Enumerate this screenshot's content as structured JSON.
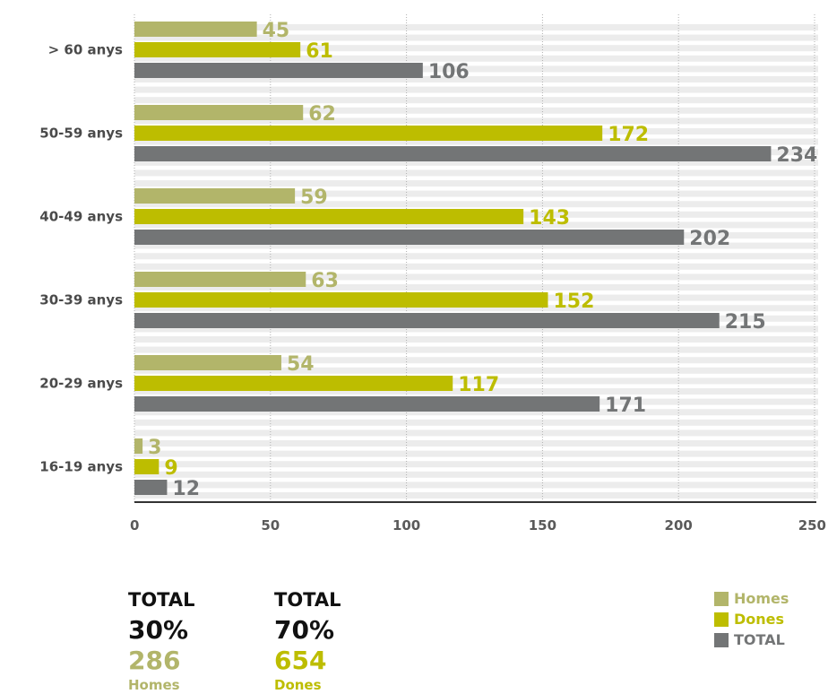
{
  "colors": {
    "homes": "#b2b56a",
    "dones": "#bdbd00",
    "total": "#737576",
    "stripe": "#ececec",
    "axis": "#333333",
    "grid": "#b0b0b0"
  },
  "chart_data": {
    "type": "bar",
    "orientation": "horizontal",
    "categories": [
      "> 60 anys",
      "50-59 anys",
      "40-49 anys",
      "30-39 anys",
      "20-29 anys",
      "16-19 anys"
    ],
    "series": [
      {
        "name": "Homes",
        "values": [
          45,
          62,
          59,
          63,
          54,
          3
        ]
      },
      {
        "name": "Dones",
        "values": [
          61,
          172,
          143,
          152,
          117,
          9
        ]
      },
      {
        "name": "TOTAL",
        "values": [
          106,
          234,
          202,
          215,
          171,
          12
        ]
      }
    ],
    "xlim": [
      0,
      250
    ],
    "xticks": [
      "0",
      "50",
      "100",
      "150",
      "200",
      "250"
    ],
    "grid": true,
    "legend": "bottom-right"
  },
  "summary": [
    {
      "title": "TOTAL",
      "percent": "30%",
      "count": "286",
      "name": "Homes"
    },
    {
      "title": "TOTAL",
      "percent": "70%",
      "count": "654",
      "name": "Dones"
    }
  ],
  "legend": [
    "Homes",
    "Dones",
    "TOTAL"
  ]
}
